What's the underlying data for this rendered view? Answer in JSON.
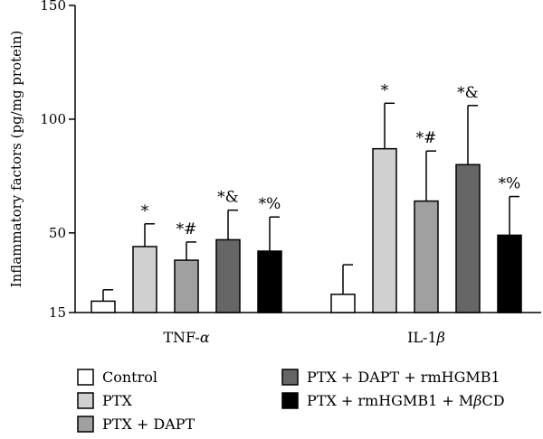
{
  "chart_data": {
    "type": "bar",
    "ylabel": "Inflammatory factors (pg/mg protein)",
    "ylim": [
      15,
      150
    ],
    "yticks": [
      15,
      50,
      100,
      150
    ],
    "categories": [
      "TNF-α",
      "IL-1β"
    ],
    "category_label_parts": [
      {
        "base": "TNF-",
        "greek": "α"
      },
      {
        "base": "IL-1",
        "greek": "β"
      }
    ],
    "series": [
      {
        "name": "Control",
        "color": "#ffffff",
        "values": [
          20,
          23
        ],
        "errors": [
          5,
          13
        ],
        "annotations": [
          "",
          ""
        ]
      },
      {
        "name": "PTX",
        "color": "#d0d0d0",
        "values": [
          44,
          87
        ],
        "errors": [
          10,
          20
        ],
        "annotations": [
          "*",
          "*"
        ]
      },
      {
        "name": "PTX + DAPT",
        "color": "#a0a0a0",
        "values": [
          38,
          64
        ],
        "errors": [
          8,
          22
        ],
        "annotations": [
          "*#",
          "*#"
        ]
      },
      {
        "name": "PTX + DAPT + rmHGMB1",
        "color": "#666666",
        "values": [
          47,
          80
        ],
        "errors": [
          13,
          26
        ],
        "annotations": [
          "*&",
          "*&"
        ]
      },
      {
        "name": "PTX + rmHGMB1 + MβCD",
        "color": "#000000",
        "values": [
          42,
          49
        ],
        "errors": [
          15,
          17
        ],
        "annotations": [
          "*%",
          "*%"
        ]
      }
    ],
    "legend_position": "bottom",
    "grid": false
  }
}
